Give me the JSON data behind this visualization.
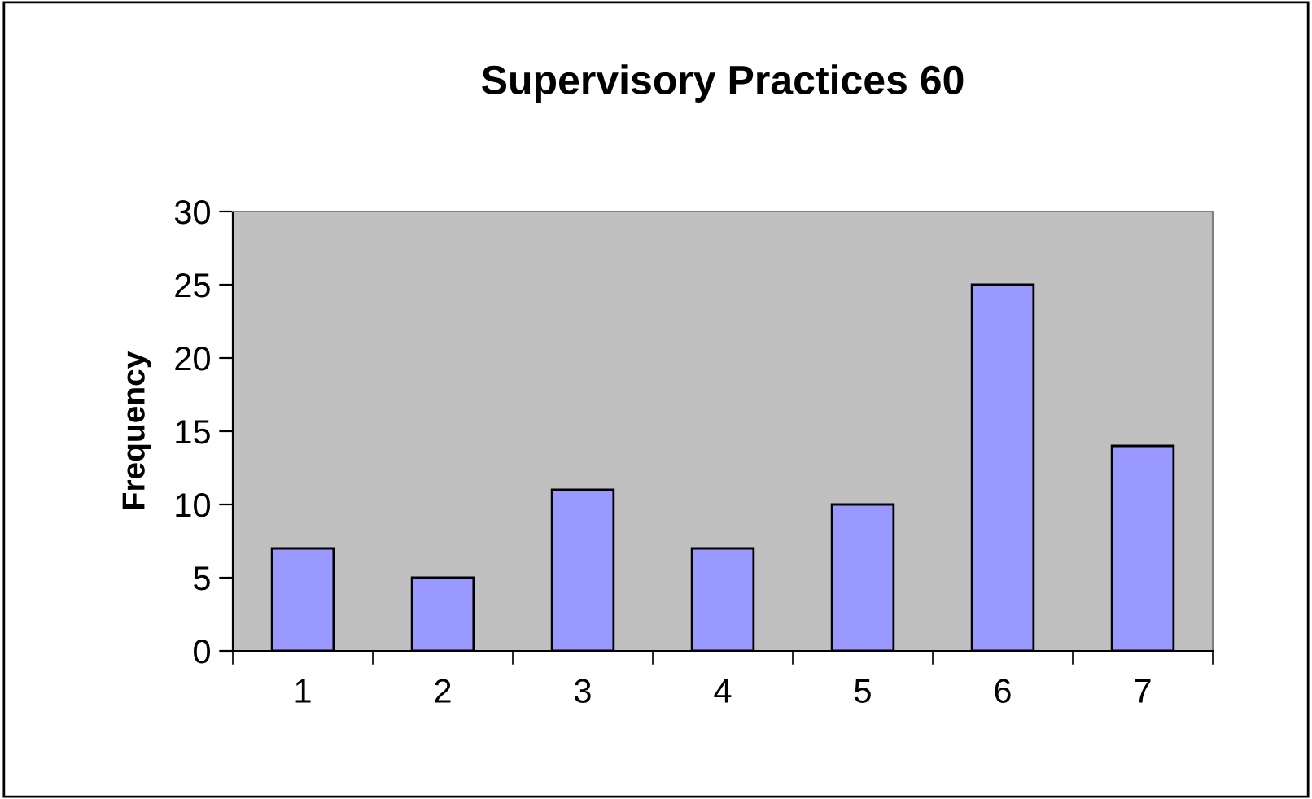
{
  "chart_data": {
    "type": "bar",
    "title": "Supervisory Practices 60",
    "ylabel": "Frequency",
    "categories": [
      "1",
      "2",
      "3",
      "4",
      "5",
      "6",
      "7"
    ],
    "values": [
      7,
      5,
      11,
      7,
      10,
      25,
      14
    ],
    "color": "#9999ff",
    "ylim": [
      0,
      30
    ],
    "yticks": [
      0,
      5,
      10,
      15,
      20,
      25,
      30
    ],
    "grid": false,
    "legend": false
  }
}
